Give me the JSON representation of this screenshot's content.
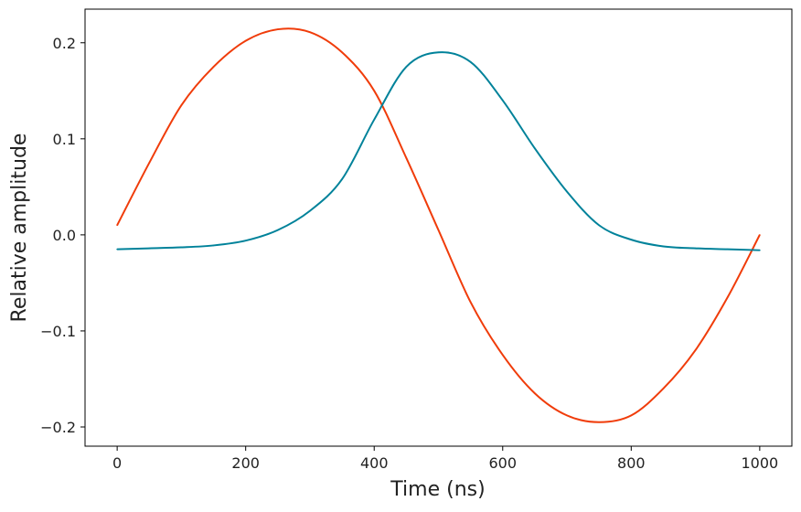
{
  "chart_data": {
    "type": "line",
    "xlabel": "Time (ns)",
    "ylabel": "Relative amplitude",
    "xlim": [
      -50,
      1050
    ],
    "ylim": [
      -0.22,
      0.235
    ],
    "xticks": [
      0,
      200,
      400,
      600,
      800,
      1000
    ],
    "xtick_labels": [
      "0",
      "200",
      "400",
      "600",
      "800",
      "1000"
    ],
    "yticks": [
      -0.2,
      -0.1,
      0.0,
      0.1,
      0.2
    ],
    "ytick_labels": [
      "−0.2",
      "−0.1",
      "0.0",
      "0.1",
      "0.2"
    ],
    "grid": false,
    "x": [
      0,
      50,
      100,
      150,
      200,
      250,
      300,
      350,
      400,
      450,
      500,
      550,
      600,
      650,
      700,
      750,
      800,
      850,
      900,
      950,
      1000
    ],
    "series": [
      {
        "color": "#f03c0a",
        "values": [
          0.01,
          0.075,
          0.135,
          0.175,
          0.202,
          0.214,
          0.211,
          0.19,
          0.15,
          0.08,
          0.005,
          -0.07,
          -0.125,
          -0.165,
          -0.188,
          -0.195,
          -0.188,
          -0.16,
          -0.12,
          -0.065,
          0.0
        ]
      },
      {
        "color": "#00829a",
        "values": [
          -0.015,
          -0.014,
          -0.013,
          -0.011,
          -0.006,
          0.005,
          0.025,
          0.058,
          0.12,
          0.175,
          0.19,
          0.18,
          0.14,
          0.09,
          0.045,
          0.01,
          -0.005,
          -0.012,
          -0.014,
          -0.015,
          -0.016
        ]
      }
    ]
  }
}
